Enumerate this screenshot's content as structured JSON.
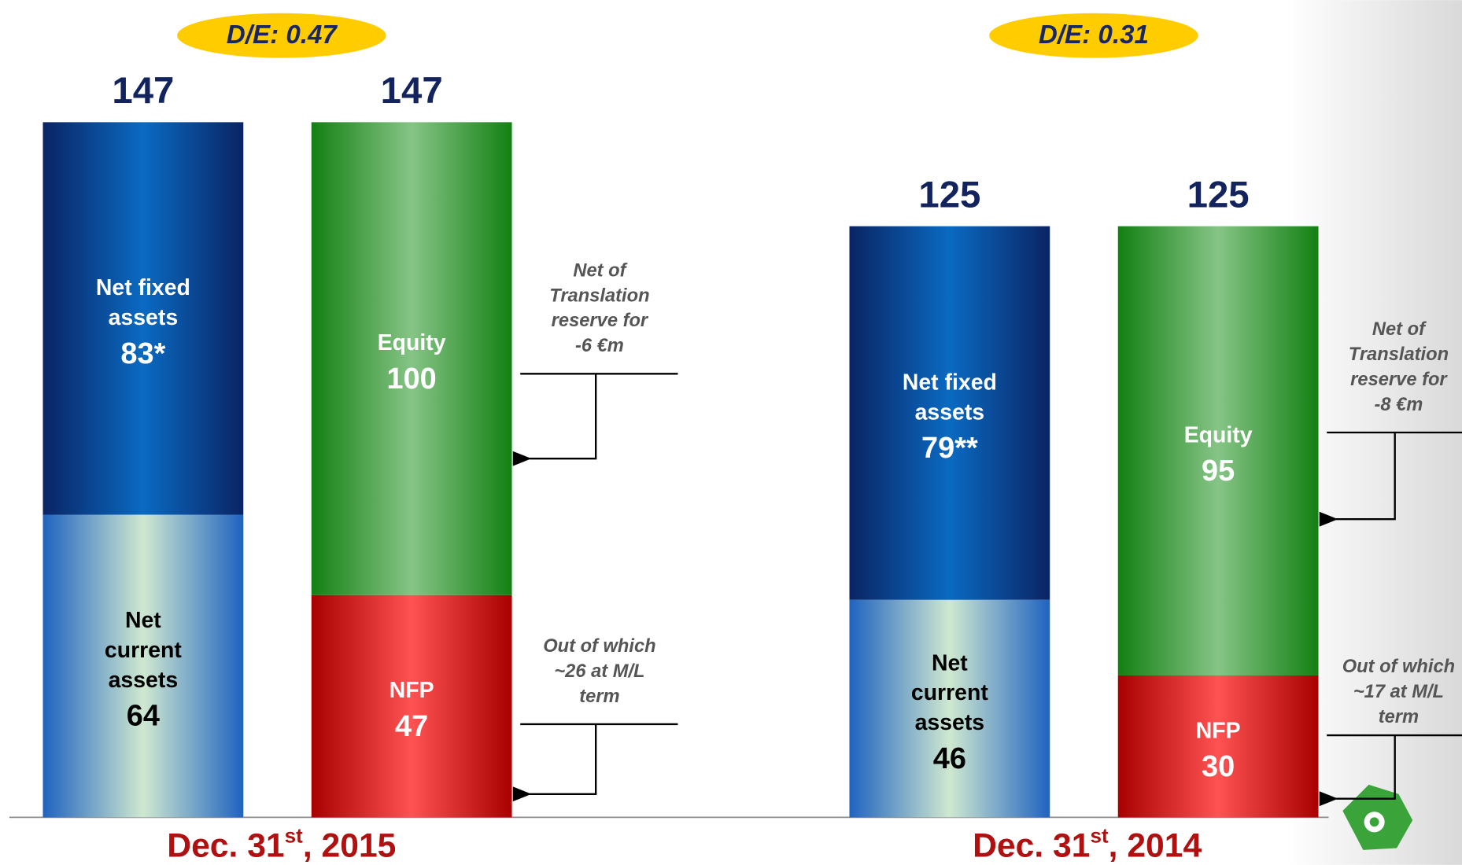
{
  "chart_data": {
    "type": "stacked_bar",
    "periods": [
      {
        "date": [
          "Dec. 31",
          "st",
          ", 2015"
        ],
        "ratio": "D/E: 0.47",
        "bars": [
          {
            "total": 147,
            "segments": [
              {
                "name": [
                  "Net",
                  "current",
                  "assets"
                ],
                "value": 64,
                "gradient": [
                  "#1f63c0",
                  "#cfe8d0"
                ],
                "text_color": "#000000"
              },
              {
                "name": [
                  "Net fixed",
                  "assets"
                ],
                "value": 83,
                "value_label": "83*",
                "gradient": [
                  "#0a2464",
                  "#0a6ac2"
                ],
                "text_color": "#ffffff"
              }
            ]
          },
          {
            "total": 147,
            "segments": [
              {
                "name": [
                  "NFP"
                ],
                "value": 47,
                "gradient": [
                  "#a80000",
                  "#ff5252"
                ],
                "text_color": "#ffffff"
              },
              {
                "name": [
                  "Equity"
                ],
                "value": 100,
                "gradient": [
                  "#138013",
                  "#86c486"
                ],
                "text_color": "#ffffff"
              }
            ]
          }
        ],
        "notes": [
          {
            "text": [
              "Net of",
              "Translation",
              "reserve for",
              "-6 €m"
            ]
          },
          {
            "text": [
              "Out of which",
              "~26 at M/L",
              "term"
            ]
          }
        ]
      },
      {
        "date": [
          "Dec. 31",
          "st",
          ", 2014"
        ],
        "ratio": "D/E: 0.31",
        "bars": [
          {
            "total": 125,
            "segments": [
              {
                "name": [
                  "Net",
                  "current",
                  "assets"
                ],
                "value": 46,
                "gradient": [
                  "#1f63c0",
                  "#cfe8d0"
                ],
                "text_color": "#000000"
              },
              {
                "name": [
                  "Net fixed",
                  "assets"
                ],
                "value": 79,
                "value_label": "79**",
                "gradient": [
                  "#0a2464",
                  "#0a6ac2"
                ],
                "text_color": "#ffffff"
              }
            ]
          },
          {
            "total": 125,
            "segments": [
              {
                "name": [
                  "NFP"
                ],
                "value": 30,
                "gradient": [
                  "#a80000",
                  "#ff5252"
                ],
                "text_color": "#ffffff"
              },
              {
                "name": [
                  "Equity"
                ],
                "value": 95,
                "gradient": [
                  "#138013",
                  "#86c486"
                ],
                "text_color": "#ffffff"
              }
            ]
          }
        ],
        "notes": [
          {
            "text": [
              "Net of",
              "Translation",
              "reserve for",
              "-8 €m"
            ]
          },
          {
            "text": [
              "Out of which",
              "~17 at M/L",
              "term"
            ]
          }
        ]
      }
    ]
  }
}
